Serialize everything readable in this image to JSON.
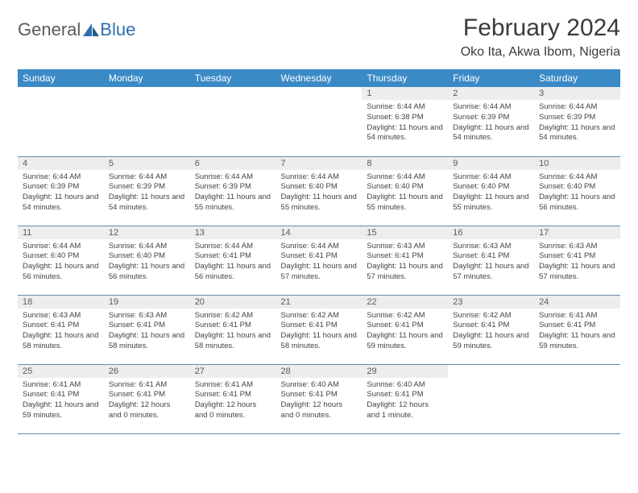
{
  "logo": {
    "text1": "General",
    "text2": "Blue"
  },
  "title": "February 2024",
  "location": "Oko Ita, Akwa Ibom, Nigeria",
  "colors": {
    "header_bg": "#3a8ac6",
    "header_text": "#ffffff",
    "daynum_bg": "#ededed",
    "text": "#444444",
    "divider": "#6a8aa5",
    "logo_gray": "#5a5a5a",
    "logo_blue": "#2e6fab"
  },
  "weekdays": [
    "Sunday",
    "Monday",
    "Tuesday",
    "Wednesday",
    "Thursday",
    "Friday",
    "Saturday"
  ],
  "weeks": [
    [
      null,
      null,
      null,
      null,
      {
        "n": "1",
        "sr": "6:44 AM",
        "ss": "6:38 PM",
        "dl": "11 hours and 54 minutes."
      },
      {
        "n": "2",
        "sr": "6:44 AM",
        "ss": "6:39 PM",
        "dl": "11 hours and 54 minutes."
      },
      {
        "n": "3",
        "sr": "6:44 AM",
        "ss": "6:39 PM",
        "dl": "11 hours and 54 minutes."
      }
    ],
    [
      {
        "n": "4",
        "sr": "6:44 AM",
        "ss": "6:39 PM",
        "dl": "11 hours and 54 minutes."
      },
      {
        "n": "5",
        "sr": "6:44 AM",
        "ss": "6:39 PM",
        "dl": "11 hours and 54 minutes."
      },
      {
        "n": "6",
        "sr": "6:44 AM",
        "ss": "6:39 PM",
        "dl": "11 hours and 55 minutes."
      },
      {
        "n": "7",
        "sr": "6:44 AM",
        "ss": "6:40 PM",
        "dl": "11 hours and 55 minutes."
      },
      {
        "n": "8",
        "sr": "6:44 AM",
        "ss": "6:40 PM",
        "dl": "11 hours and 55 minutes."
      },
      {
        "n": "9",
        "sr": "6:44 AM",
        "ss": "6:40 PM",
        "dl": "11 hours and 55 minutes."
      },
      {
        "n": "10",
        "sr": "6:44 AM",
        "ss": "6:40 PM",
        "dl": "11 hours and 56 minutes."
      }
    ],
    [
      {
        "n": "11",
        "sr": "6:44 AM",
        "ss": "6:40 PM",
        "dl": "11 hours and 56 minutes."
      },
      {
        "n": "12",
        "sr": "6:44 AM",
        "ss": "6:40 PM",
        "dl": "11 hours and 56 minutes."
      },
      {
        "n": "13",
        "sr": "6:44 AM",
        "ss": "6:41 PM",
        "dl": "11 hours and 56 minutes."
      },
      {
        "n": "14",
        "sr": "6:44 AM",
        "ss": "6:41 PM",
        "dl": "11 hours and 57 minutes."
      },
      {
        "n": "15",
        "sr": "6:43 AM",
        "ss": "6:41 PM",
        "dl": "11 hours and 57 minutes."
      },
      {
        "n": "16",
        "sr": "6:43 AM",
        "ss": "6:41 PM",
        "dl": "11 hours and 57 minutes."
      },
      {
        "n": "17",
        "sr": "6:43 AM",
        "ss": "6:41 PM",
        "dl": "11 hours and 57 minutes."
      }
    ],
    [
      {
        "n": "18",
        "sr": "6:43 AM",
        "ss": "6:41 PM",
        "dl": "11 hours and 58 minutes."
      },
      {
        "n": "19",
        "sr": "6:43 AM",
        "ss": "6:41 PM",
        "dl": "11 hours and 58 minutes."
      },
      {
        "n": "20",
        "sr": "6:42 AM",
        "ss": "6:41 PM",
        "dl": "11 hours and 58 minutes."
      },
      {
        "n": "21",
        "sr": "6:42 AM",
        "ss": "6:41 PM",
        "dl": "11 hours and 58 minutes."
      },
      {
        "n": "22",
        "sr": "6:42 AM",
        "ss": "6:41 PM",
        "dl": "11 hours and 59 minutes."
      },
      {
        "n": "23",
        "sr": "6:42 AM",
        "ss": "6:41 PM",
        "dl": "11 hours and 59 minutes."
      },
      {
        "n": "24",
        "sr": "6:41 AM",
        "ss": "6:41 PM",
        "dl": "11 hours and 59 minutes."
      }
    ],
    [
      {
        "n": "25",
        "sr": "6:41 AM",
        "ss": "6:41 PM",
        "dl": "11 hours and 59 minutes."
      },
      {
        "n": "26",
        "sr": "6:41 AM",
        "ss": "6:41 PM",
        "dl": "12 hours and 0 minutes."
      },
      {
        "n": "27",
        "sr": "6:41 AM",
        "ss": "6:41 PM",
        "dl": "12 hours and 0 minutes."
      },
      {
        "n": "28",
        "sr": "6:40 AM",
        "ss": "6:41 PM",
        "dl": "12 hours and 0 minutes."
      },
      {
        "n": "29",
        "sr": "6:40 AM",
        "ss": "6:41 PM",
        "dl": "12 hours and 1 minute."
      },
      null,
      null
    ]
  ],
  "labels": {
    "sunrise": "Sunrise:",
    "sunset": "Sunset:",
    "daylight": "Daylight:"
  }
}
